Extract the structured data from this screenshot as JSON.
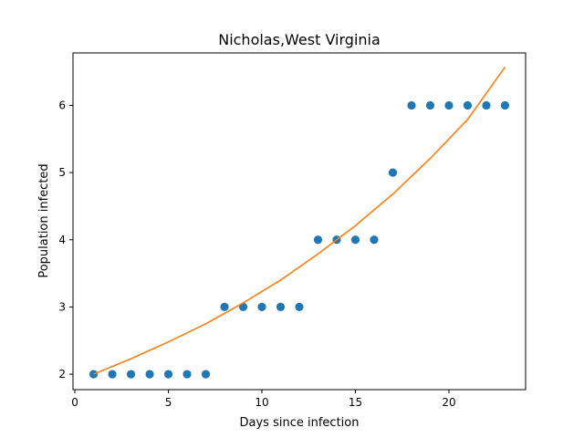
{
  "chart_data": {
    "type": "scatter",
    "title": "Nicholas,West Virginia",
    "xlabel": "Days since infection",
    "ylabel": "Population infected",
    "xlim": [
      -0.1,
      24.1
    ],
    "ylim": [
      1.77,
      6.78
    ],
    "xticks": [
      0,
      5,
      10,
      15,
      20
    ],
    "yticks": [
      2,
      3,
      4,
      5,
      6
    ],
    "grid": false,
    "series": [
      {
        "kind": "scatter",
        "color": "#1f77b4",
        "x": [
          1,
          2,
          3,
          4,
          5,
          6,
          7,
          8,
          9,
          10,
          11,
          12,
          13,
          14,
          15,
          16,
          17,
          18,
          19,
          20,
          21,
          22,
          23
        ],
        "y": [
          2,
          2,
          2,
          2,
          2,
          2,
          2,
          3,
          3,
          3,
          3,
          3,
          4,
          4,
          4,
          4,
          5,
          6,
          6,
          6,
          6,
          6,
          6
        ]
      },
      {
        "kind": "line",
        "color": "#ff7f0e",
        "x": [
          1,
          3,
          5,
          7,
          9,
          11,
          13,
          15,
          17,
          19,
          21,
          23
        ],
        "y": [
          2.0,
          2.23,
          2.48,
          2.75,
          3.06,
          3.4,
          3.79,
          4.21,
          4.68,
          5.21,
          5.79,
          6.57
        ]
      }
    ]
  }
}
